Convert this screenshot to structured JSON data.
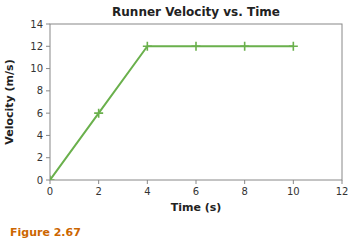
{
  "chart_data": {
    "type": "line",
    "title": "Runner Velocity vs. Time",
    "x_label": "Time (s)",
    "y_label": "Velocity (m/s)",
    "x": [
      0,
      2,
      4,
      6,
      8,
      10
    ],
    "series": [
      {
        "name": "Velocity",
        "color": "#6ab04c",
        "marker": "plus",
        "line_style": "solid",
        "values": [
          0,
          6,
          12,
          12,
          12,
          12
        ]
      }
    ],
    "xlim": [
      0,
      12
    ],
    "ylim": [
      0,
      14
    ],
    "xticks": [
      0,
      2,
      4,
      6,
      8,
      10,
      12
    ],
    "yticks": [
      0,
      2,
      4,
      6,
      8,
      10,
      12,
      14
    ],
    "grid": false,
    "annotations": [
      {
        "text": "Figure 2.67",
        "color": "#cc6600"
      }
    ]
  }
}
